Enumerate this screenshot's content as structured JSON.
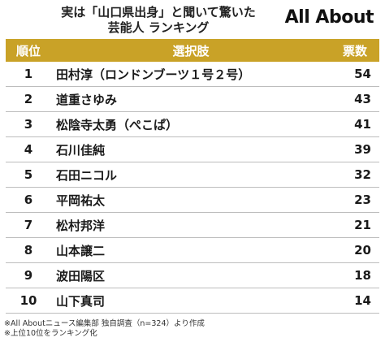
{
  "header": {
    "title_line1": "実は「山口県出身」と聞いて驚いた",
    "title_line2": "芸能人 ランキング",
    "logo": "All About"
  },
  "table": {
    "columns": [
      "順位",
      "選択肢",
      "票数"
    ],
    "rows": [
      {
        "rank": "1",
        "name": "田村淳（ロンドンブーツ１号２号）",
        "votes": "54"
      },
      {
        "rank": "2",
        "name": "道重さゆみ",
        "votes": "43"
      },
      {
        "rank": "3",
        "name": "松陰寺太勇（ぺこぱ）",
        "votes": "41"
      },
      {
        "rank": "4",
        "name": "石川佳純",
        "votes": "39"
      },
      {
        "rank": "5",
        "name": "石田ニコル",
        "votes": "32"
      },
      {
        "rank": "6",
        "name": "平岡祐太",
        "votes": "23"
      },
      {
        "rank": "7",
        "name": "松村邦洋",
        "votes": "21"
      },
      {
        "rank": "8",
        "name": "山本譲二",
        "votes": "20"
      },
      {
        "rank": "9",
        "name": "波田陽区",
        "votes": "18"
      },
      {
        "rank": "10",
        "name": "山下真司",
        "votes": "14"
      }
    ]
  },
  "footer": {
    "note1": "※All Aboutニュース編集部 独自調査（n=324）より作成",
    "note2": "※上位10位をランキング化"
  },
  "colors": {
    "header_bg": "#c9a227",
    "header_text": "#ffffff",
    "row_divider": "#bdbdbd"
  }
}
